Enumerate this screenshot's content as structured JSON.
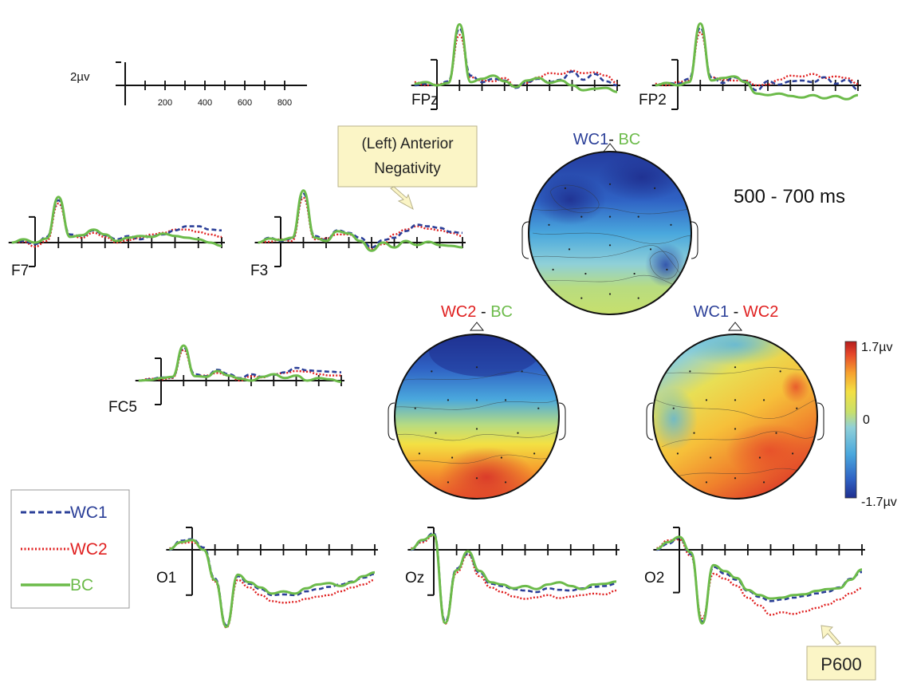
{
  "colors": {
    "wc1": "#2b3f98",
    "wc2": "#e02020",
    "bc": "#6cbb4a",
    "axis": "#111111",
    "callout_fill": "#fbf5c6",
    "callout_stroke": "#b8b28a",
    "colormap": [
      "#1f2f8f",
      "#2f62c4",
      "#4aa8dd",
      "#8fd0d8",
      "#c9e06a",
      "#f3e043",
      "#f6a12e",
      "#e5462a",
      "#b51d1d"
    ]
  },
  "chart_data": {
    "type": "line",
    "title": "500 - 700 ms",
    "x": [
      -100,
      -50,
      0,
      50,
      100,
      150,
      200,
      250,
      300,
      350,
      400,
      450,
      500,
      550,
      600,
      650,
      700,
      750,
      800
    ],
    "x_ticks": [
      200,
      400,
      600,
      800
    ],
    "x_unit": "ms",
    "scale_label": "2µv",
    "legend": [
      {
        "key": "wc1",
        "label": "WC1",
        "style": "dashed"
      },
      {
        "key": "wc2",
        "label": "WC2",
        "style": "dotted"
      },
      {
        "key": "bc",
        "label": "BC",
        "style": "solid"
      }
    ],
    "electrodes": [
      {
        "label": "FPz",
        "ylim": [
          -2.5,
          7.5
        ],
        "wc1": [
          0.0,
          0.2,
          0.0,
          0.5,
          7.0,
          1.2,
          0.4,
          0.8,
          0.6,
          -0.3,
          0.4,
          0.8,
          0.4,
          0.7,
          1.7,
          0.7,
          1.4,
          0.5,
          0.0
        ],
        "wc2": [
          0.4,
          0.0,
          0.1,
          0.4,
          6.2,
          1.0,
          0.6,
          0.5,
          0.9,
          -0.2,
          0.3,
          1.0,
          1.5,
          1.4,
          1.8,
          1.5,
          1.6,
          1.2,
          0.3
        ],
        "bc": [
          0.2,
          0.4,
          0.0,
          0.3,
          7.5,
          0.4,
          0.8,
          1.2,
          0.5,
          -0.2,
          0.6,
          0.9,
          0.3,
          0.6,
          0.0,
          -0.6,
          -0.4,
          -0.3,
          -0.8
        ]
      },
      {
        "label": "FP2",
        "ylim": [
          -2.5,
          7.5
        ],
        "wc1": [
          0.0,
          0.3,
          0.2,
          0.8,
          7.1,
          1.0,
          0.3,
          1.0,
          0.5,
          -0.6,
          0.5,
          0.1,
          0.5,
          0.6,
          0.4,
          1.0,
          0.2,
          0.7,
          -0.5
        ],
        "wc2": [
          0.2,
          0.0,
          0.4,
          0.6,
          6.5,
          1.0,
          0.7,
          0.6,
          0.6,
          0.0,
          0.1,
          0.7,
          1.2,
          1.1,
          1.4,
          0.9,
          1.1,
          0.9,
          0.2
        ],
        "bc": [
          0.0,
          0.3,
          0.0,
          0.4,
          7.6,
          0.6,
          0.9,
          1.1,
          0.4,
          -1.0,
          -1.2,
          -1.0,
          -1.3,
          -1.5,
          -1.2,
          -1.6,
          -1.3,
          -1.7,
          -1.2
        ]
      },
      {
        "label": "F7",
        "ylim": [
          -2.5,
          7.5
        ],
        "wc1": [
          0.0,
          0.2,
          -0.2,
          0.7,
          5.2,
          1.0,
          0.8,
          1.5,
          0.9,
          0.4,
          0.8,
          0.4,
          0.8,
          1.0,
          1.5,
          2.0,
          2.0,
          1.6,
          1.5
        ],
        "wc2": [
          0.0,
          0.1,
          -0.5,
          0.2,
          4.8,
          0.9,
          0.6,
          1.2,
          0.7,
          0.0,
          0.3,
          0.6,
          1.0,
          1.2,
          1.6,
          1.6,
          1.3,
          1.0,
          0.7
        ],
        "bc": [
          0.0,
          0.4,
          0.0,
          0.5,
          5.6,
          0.7,
          0.9,
          1.6,
          1.0,
          0.2,
          0.6,
          0.8,
          0.7,
          1.1,
          0.8,
          0.6,
          0.4,
          0.0,
          -0.4
        ]
      },
      {
        "label": "F3",
        "ylim": [
          -2.5,
          7.5
        ],
        "wc1": [
          0.0,
          0.6,
          0.2,
          0.5,
          6.0,
          0.8,
          0.3,
          1.5,
          1.2,
          0.6,
          -0.6,
          0.3,
          0.6,
          1.4,
          2.2,
          2.0,
          1.8,
          1.3,
          1.2
        ],
        "wc2": [
          0.0,
          0.1,
          0.4,
          0.2,
          5.5,
          0.4,
          0.5,
          1.0,
          1.0,
          0.2,
          -0.8,
          -0.2,
          1.0,
          1.6,
          2.0,
          1.7,
          1.5,
          1.2,
          0.8
        ],
        "bc": [
          0.0,
          0.5,
          0.3,
          0.6,
          6.4,
          0.6,
          0.2,
          1.4,
          1.1,
          0.2,
          -1.0,
          0.0,
          -0.6,
          0.2,
          -0.3,
          0.1,
          -0.3,
          -0.4,
          -0.6
        ]
      },
      {
        "label": "FC5",
        "ylim": [
          -2.5,
          7.5
        ],
        "wc1": [
          0.0,
          0.2,
          0.5,
          0.5,
          5.2,
          1.0,
          0.7,
          1.7,
          1.0,
          0.4,
          1.0,
          0.6,
          0.9,
          1.3,
          2.0,
          1.6,
          1.5,
          1.4,
          1.3
        ],
        "wc2": [
          0.0,
          0.3,
          0.2,
          0.4,
          4.8,
          0.7,
          0.8,
          1.2,
          0.8,
          0.0,
          0.7,
          0.5,
          1.0,
          1.2,
          1.5,
          1.4,
          1.0,
          0.8,
          0.8
        ],
        "bc": [
          0.0,
          0.1,
          0.4,
          0.6,
          5.5,
          0.7,
          0.6,
          1.5,
          0.8,
          0.3,
          0.0,
          0.6,
          1.0,
          0.4,
          0.8,
          0.0,
          0.4,
          0.2,
          -0.2
        ]
      },
      {
        "label": "O1",
        "ylim": [
          -12,
          3
        ],
        "wc1": [
          0.0,
          1.2,
          1.4,
          0.3,
          -3.8,
          -10.0,
          -3.5,
          -4.5,
          -5.2,
          -6.0,
          -5.9,
          -6.0,
          -5.5,
          -5.2,
          -4.9,
          -4.6,
          -4.2,
          -3.7,
          -3.2
        ],
        "wc2": [
          0.2,
          0.9,
          1.0,
          0.2,
          -4.2,
          -10.3,
          -4.0,
          -5.0,
          -6.0,
          -6.8,
          -7.0,
          -6.9,
          -6.5,
          -6.2,
          -6.0,
          -5.5,
          -5.0,
          -4.6,
          -4.0
        ],
        "bc": [
          0.1,
          1.0,
          1.3,
          0.0,
          -4.0,
          -10.2,
          -3.3,
          -4.3,
          -5.0,
          -5.8,
          -5.5,
          -5.8,
          -5.1,
          -4.6,
          -4.4,
          -4.8,
          -4.3,
          -3.5,
          -3.0
        ]
      },
      {
        "label": "Oz",
        "ylim": [
          -12,
          3
        ],
        "wc1": [
          0.0,
          1.2,
          2.2,
          -9.5,
          -2.5,
          -0.5,
          -3.0,
          -4.5,
          -4.8,
          -5.2,
          -5.4,
          -5.6,
          -5.1,
          -5.3,
          -5.4,
          -5.1,
          -4.9,
          -4.8,
          -4.5
        ],
        "wc2": [
          0.2,
          1.0,
          1.9,
          -9.8,
          -3.0,
          -0.6,
          -3.5,
          -5.0,
          -5.6,
          -6.2,
          -6.5,
          -6.3,
          -6.0,
          -6.4,
          -6.2,
          -6.0,
          -5.8,
          -5.9,
          -5.4
        ],
        "bc": [
          0.1,
          1.3,
          2.0,
          -9.7,
          -2.7,
          -0.2,
          -2.8,
          -4.3,
          -4.6,
          -5.1,
          -4.8,
          -5.2,
          -4.6,
          -4.3,
          -4.8,
          -5.2,
          -4.6,
          -4.5,
          -4.2
        ]
      },
      {
        "label": "O2",
        "ylim": [
          -10,
          2.5
        ],
        "wc1": [
          0.0,
          0.7,
          1.4,
          -0.5,
          -8.4,
          -2.0,
          -2.8,
          -3.5,
          -4.8,
          -5.5,
          -6.0,
          -5.8,
          -5.6,
          -5.4,
          -5.1,
          -4.9,
          -4.4,
          -3.4,
          -2.6
        ],
        "wc2": [
          0.2,
          1.1,
          1.2,
          -0.7,
          -8.0,
          -2.8,
          -3.4,
          -4.2,
          -5.6,
          -6.5,
          -7.6,
          -7.3,
          -7.5,
          -7.2,
          -6.8,
          -6.4,
          -5.8,
          -5.1,
          -4.5
        ],
        "bc": [
          0.1,
          0.9,
          1.5,
          -0.3,
          -8.6,
          -1.8,
          -2.5,
          -3.3,
          -4.7,
          -5.3,
          -5.7,
          -5.6,
          -5.3,
          -5.2,
          -4.8,
          -4.6,
          -4.5,
          -3.5,
          -2.3
        ]
      }
    ],
    "topo_maps": [
      {
        "key": "wc1_bc",
        "left": "WC1",
        "sep": "- ",
        "right": "BC",
        "left_color": "wc1",
        "right_color": "bc"
      },
      {
        "key": "wc2_bc",
        "left": "WC2",
        "sep": " - ",
        "right": "BC",
        "left_color": "wc2",
        "right_color": "bc"
      },
      {
        "key": "wc1_wc2",
        "left": "WC1",
        "sep": " - ",
        "right": "WC2",
        "left_color": "wc1",
        "right_color": "wc2"
      }
    ],
    "colorbar": {
      "max_label": "1.7µv",
      "mid_label": "0",
      "min_label": "-1.7µv",
      "range": [
        -1.7,
        1.7
      ]
    },
    "annotations": {
      "anterior": "(Left) Anterior Negativity",
      "anterior_lines": [
        "(Left) Anterior",
        "Negativity"
      ],
      "p600": "P600"
    }
  }
}
